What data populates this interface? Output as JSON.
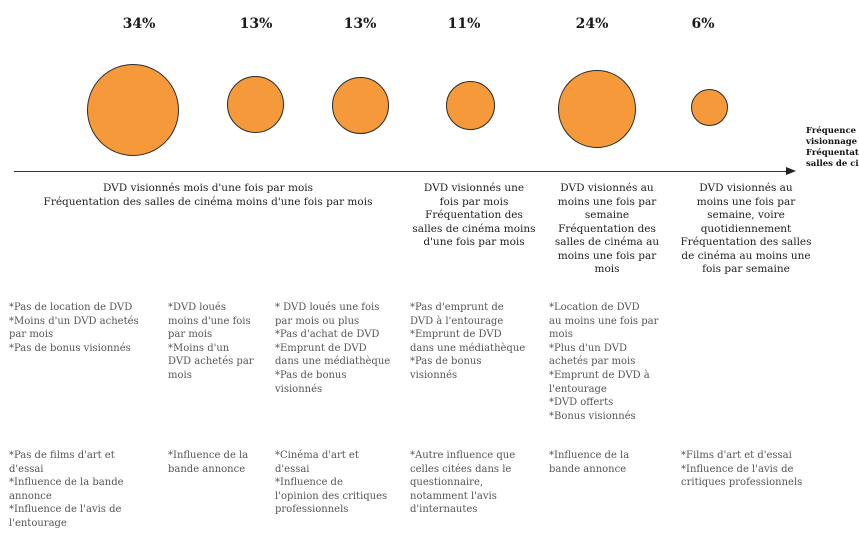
{
  "colors": {
    "bubble_fill": "#f6993a",
    "bubble_stroke": "#2a2a2a",
    "axis": "#333333"
  },
  "axis": {
    "label_lines": [
      "Fréquence de",
      "visionnage DVD",
      "Fréquentation des",
      "salles de cinéma"
    ]
  },
  "segments": [
    {
      "percent": "34%",
      "share": 34,
      "description": [
        "DVD visionnés mois d'une fois par mois",
        "Fréquentation des salles de cinéma moins d'une fois par mois"
      ],
      "behaviors": [
        "*Pas de location de DVD",
        "*Moins d'un DVD achetés",
        "par mois",
        "*Pas de bonus visionnés"
      ],
      "influences": [
        "*Pas de films d'art et",
        "d'essai",
        "*Influence de la bande",
        "annonce",
        "*Influence de l'avis de",
        "l'entourage"
      ]
    },
    {
      "percent": "13%",
      "share": 13,
      "behaviors": [
        "*DVD loués",
        "moins d'une fois",
        "par mois",
        "*Moins d'un",
        "DVD achetés par",
        "mois"
      ],
      "influences": [
        "*Influence de la",
        "bande annonce"
      ]
    },
    {
      "percent": "13%",
      "share": 13,
      "behaviors": [
        "* DVD loués une fois",
        "par mois ou plus",
        "*Pas d'achat de DVD",
        "*Emprunt de DVD",
        "dans une médiathèque",
        "*Pas de bonus",
        "visionnés"
      ],
      "influences": [
        "*Cinéma d'art et",
        "d'essai",
        "*Influence de",
        "l'opinion des critiques",
        "professionnels"
      ]
    },
    {
      "percent": "11%",
      "share": 11,
      "description": [
        "DVD visionnés une",
        "fois par mois",
        "Fréquentation des",
        "salles de cinéma moins",
        "d'une fois par mois"
      ],
      "behaviors": [
        "*Pas d'emprunt de",
        "DVD à l'entourage",
        "*Emprunt de DVD",
        "dans une médiathèque",
        "*Pas de bonus",
        "visionnés"
      ],
      "influences": [
        "*Autre influence que",
        "celles citées dans le",
        "questionnaire,",
        "notamment l'avis",
        "d'internautes"
      ]
    },
    {
      "percent": "24%",
      "share": 24,
      "description": [
        "DVD visionnés au",
        "moins une fois par",
        "semaine",
        "Fréquentation des",
        "salles de cinéma au",
        "moins une fois par",
        "mois"
      ],
      "behaviors": [
        "*Location de DVD",
        "au moins une fois par",
        "mois",
        "*Plus d'un DVD",
        "achetés par mois",
        "*Emprunt de DVD à",
        "l'entourage",
        "*DVD offerts",
        "*Bonus visionnés"
      ],
      "influences": [
        "*Influence de la",
        "bande annonce"
      ]
    },
    {
      "percent": "6%",
      "share": 6,
      "description": [
        "DVD visionnés au",
        "moins une fois par",
        "semaine, voire",
        "quotidiennement",
        "Fréquentation des salles",
        "de cinéma au moins une",
        "fois par semaine"
      ],
      "influences": [
        "*Films d'art et d'essai",
        "*Influence de l'avis de",
        "critiques professionnels"
      ]
    }
  ]
}
